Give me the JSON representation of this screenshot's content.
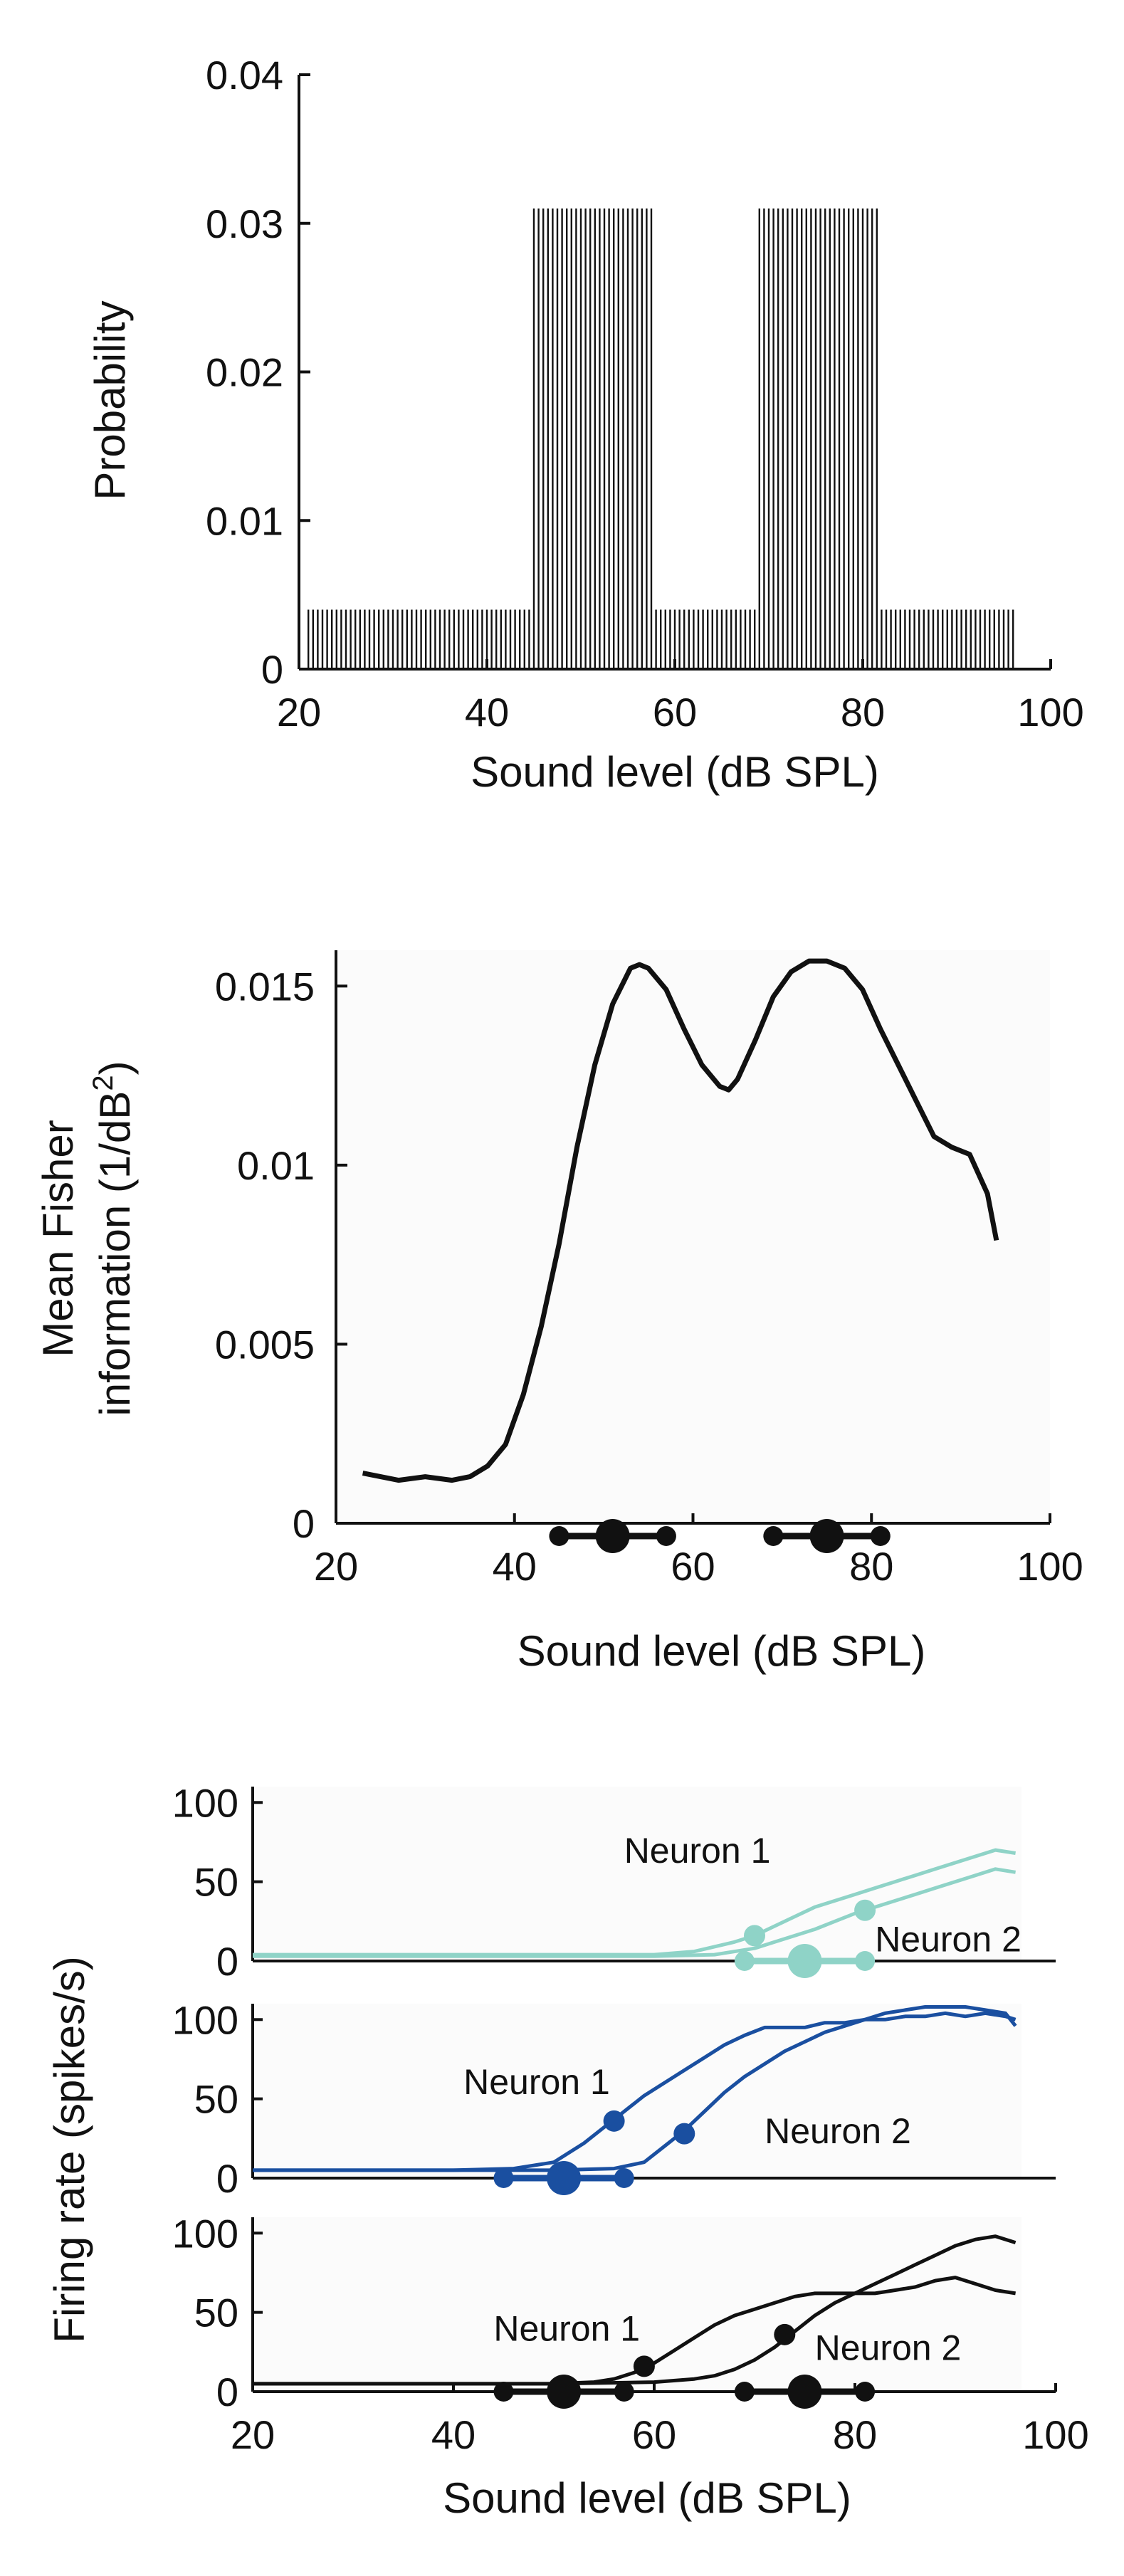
{
  "chart_data": [
    {
      "type": "bar",
      "title": "",
      "xlabel": "Sound level (dB SPL)",
      "ylabel": "Probability",
      "xlim": [
        20,
        100
      ],
      "ylim": [
        0,
        0.04
      ],
      "x_ticks": [
        "20",
        "40",
        "60",
        "80",
        "100"
      ],
      "y_ticks": [
        "0",
        "0.01",
        "0.02",
        "0.03",
        "0.04"
      ],
      "bar_width": 0.5,
      "segments": [
        {
          "x_start": 21,
          "x_end": 44.5,
          "value": 0.004
        },
        {
          "x_start": 45,
          "x_end": 57.5,
          "value": 0.031
        },
        {
          "x_start": 58,
          "x_end": 68.5,
          "value": 0.004
        },
        {
          "x_start": 69,
          "x_end": 81.5,
          "value": 0.031
        },
        {
          "x_start": 82,
          "x_end": 96,
          "value": 0.004
        }
      ]
    },
    {
      "type": "line",
      "title": "",
      "xlabel": "Sound level (dB SPL)",
      "ylabel_line1": "Mean Fisher",
      "ylabel_line2": "information (1/dB",
      "ylabel_sup": "2",
      "ylabel_close": ")",
      "xlim": [
        20,
        100
      ],
      "ylim": [
        0,
        0.016
      ],
      "x_ticks": [
        "20",
        "40",
        "60",
        "80",
        "100"
      ],
      "y_ticks": [
        "0",
        "0.005",
        "0.01",
        "0.015"
      ],
      "x": [
        23,
        25,
        27,
        30,
        33,
        35,
        37,
        39,
        41,
        43,
        45,
        47,
        49,
        51,
        53,
        54,
        55,
        57,
        59,
        61,
        63,
        64,
        65,
        67,
        69,
        71,
        73,
        75,
        77,
        79,
        81,
        83,
        85,
        87,
        89,
        91,
        93,
        94
      ],
      "y": [
        0.0014,
        0.0013,
        0.0012,
        0.0013,
        0.0012,
        0.0013,
        0.0016,
        0.0022,
        0.0036,
        0.0055,
        0.0078,
        0.0105,
        0.0128,
        0.0145,
        0.0155,
        0.0156,
        0.0155,
        0.0149,
        0.0138,
        0.0128,
        0.0122,
        0.0121,
        0.0124,
        0.0135,
        0.0147,
        0.0154,
        0.0157,
        0.0157,
        0.0155,
        0.0149,
        0.0138,
        0.0128,
        0.0118,
        0.0108,
        0.0105,
        0.0103,
        0.0092,
        0.0079
      ],
      "dots_small": [
        45,
        57,
        69,
        81
      ],
      "dots_large": [
        51,
        75
      ],
      "color": "#111111"
    },
    {
      "type": "line",
      "title": "",
      "xlabel": "Sound level (dB SPL)",
      "ylabel": "Firing rate (spikes/s)",
      "xlim": [
        20,
        100
      ],
      "x_ticks": [
        "20",
        "40",
        "60",
        "80",
        "100"
      ],
      "panels": [
        {
          "color": "#8fd3c7",
          "ylim": [
            0,
            110
          ],
          "y_ticks": [
            "0",
            "50",
            "100"
          ],
          "dots_small": [
            69,
            81
          ],
          "dots_large": [
            75
          ],
          "series": [
            {
              "name": "Neuron 1",
              "x": [
                20,
                30,
                40,
                50,
                60,
                64,
                68,
                70,
                72,
                74,
                76,
                78,
                80,
                82,
                84,
                86,
                88,
                90,
                92,
                94,
                96
              ],
              "y": [
                4,
                4,
                4,
                4,
                4,
                6,
                12,
                16,
                22,
                28,
                34,
                38,
                42,
                46,
                50,
                54,
                58,
                62,
                66,
                70,
                68
              ],
              "marker_x": 70,
              "marker_y": 16,
              "label_x": 57,
              "label_y": 62
            },
            {
              "name": "Neuron 2",
              "x": [
                20,
                30,
                40,
                50,
                60,
                66,
                70,
                72,
                74,
                76,
                78,
                80,
                82,
                84,
                86,
                88,
                90,
                92,
                94,
                96
              ],
              "y": [
                3,
                3,
                3,
                3,
                3,
                4,
                8,
                12,
                16,
                20,
                25,
                30,
                34,
                38,
                42,
                46,
                50,
                54,
                58,
                56
              ],
              "marker_x": 81,
              "marker_y": 32,
              "label_x": 82,
              "label_y": 6
            }
          ]
        },
        {
          "color": "#1a4fa0",
          "ylim": [
            0,
            110
          ],
          "y_ticks": [
            "0",
            "50",
            "100"
          ],
          "dots_small": [
            45,
            57
          ],
          "dots_large": [
            51
          ],
          "series": [
            {
              "name": "Neuron 1",
              "x": [
                20,
                30,
                40,
                46,
                50,
                53,
                55,
                57,
                59,
                61,
                63,
                65,
                67,
                69,
                71,
                73,
                75,
                77,
                79,
                81,
                83,
                85,
                87,
                89,
                91,
                93,
                95,
                96
              ],
              "y": [
                5,
                5,
                5,
                6,
                10,
                22,
                32,
                42,
                52,
                60,
                68,
                76,
                84,
                90,
                95,
                95,
                95,
                98,
                98,
                100,
                100,
                102,
                102,
                104,
                102,
                104,
                102,
                100
              ],
              "marker_x": 56,
              "marker_y": 36,
              "label_x": 41,
              "label_y": 53
            },
            {
              "name": "Neuron 2",
              "x": [
                20,
                30,
                40,
                50,
                56,
                59,
                61,
                63,
                65,
                67,
                69,
                71,
                73,
                75,
                77,
                79,
                81,
                83,
                85,
                87,
                89,
                91,
                93,
                95,
                96
              ],
              "y": [
                5,
                5,
                5,
                5,
                6,
                10,
                20,
                30,
                42,
                54,
                64,
                72,
                80,
                86,
                92,
                96,
                100,
                104,
                106,
                108,
                108,
                108,
                106,
                104,
                96
              ],
              "marker_x": 63,
              "marker_y": 28,
              "label_x": 71,
              "label_y": 22
            }
          ]
        },
        {
          "color": "#111111",
          "ylim": [
            0,
            110
          ],
          "y_ticks": [
            "0",
            "50",
            "100"
          ],
          "dots_small": [
            45,
            57,
            69,
            81
          ],
          "dots_large": [
            51,
            75
          ],
          "series": [
            {
              "name": "Neuron 1",
              "x": [
                20,
                30,
                40,
                50,
                54,
                56,
                58,
                60,
                62,
                64,
                66,
                68,
                70,
                72,
                74,
                76,
                78,
                80,
                82,
                84,
                86,
                88,
                90,
                92,
                94,
                96
              ],
              "y": [
                5,
                5,
                5,
                5,
                6,
                8,
                12,
                18,
                26,
                34,
                42,
                48,
                52,
                56,
                60,
                62,
                62,
                62,
                62,
                64,
                66,
                70,
                72,
                68,
                64,
                62
              ],
              "marker_x": 59,
              "marker_y": 16,
              "label_x": 44,
              "label_y": 32
            },
            {
              "name": "Neuron 2",
              "x": [
                20,
                30,
                40,
                50,
                60,
                64,
                66,
                68,
                70,
                72,
                74,
                76,
                78,
                80,
                82,
                84,
                86,
                88,
                90,
                92,
                94,
                96
              ],
              "y": [
                5,
                5,
                5,
                5,
                6,
                8,
                10,
                14,
                20,
                28,
                38,
                48,
                56,
                62,
                68,
                74,
                80,
                86,
                92,
                96,
                98,
                94
              ],
              "marker_x": 73,
              "marker_y": 36,
              "label_x": 76,
              "label_y": 20
            }
          ]
        }
      ]
    }
  ]
}
